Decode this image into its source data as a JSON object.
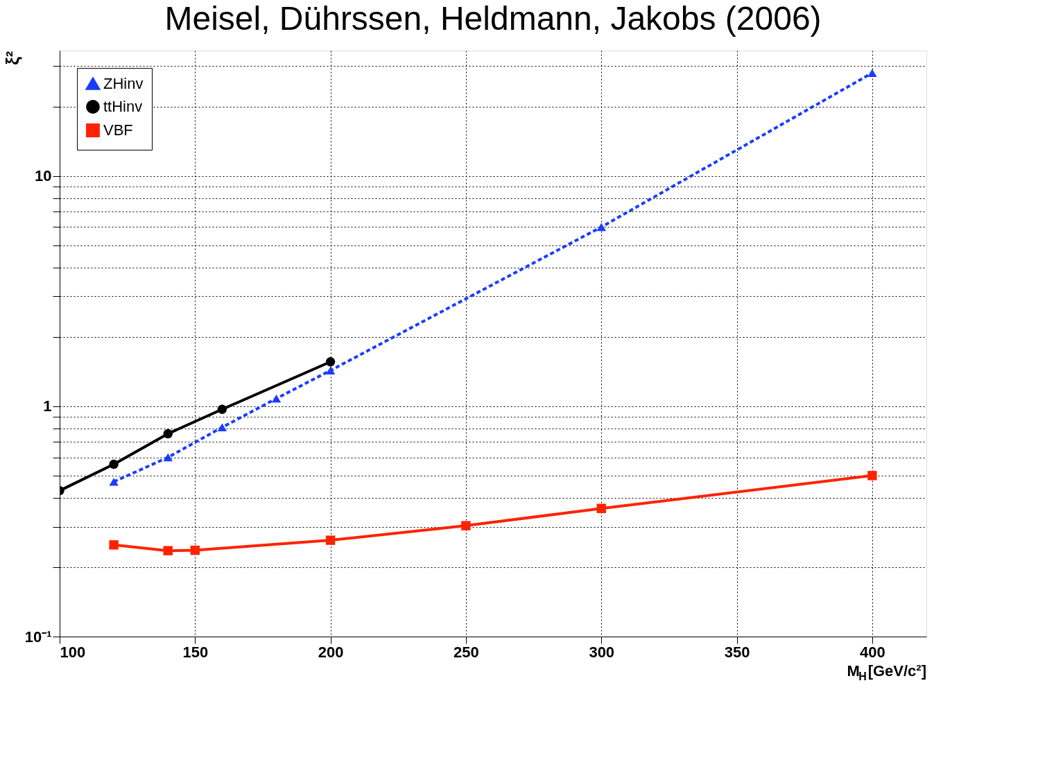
{
  "chart_data": {
    "type": "line",
    "title": "Meisel, Dührssen, Heldmann, Jakobs (2006)",
    "xlabel": "M$_{H}$[GeV/c²]",
    "ylabel": "ξ²",
    "series": [
      {
        "name": "ZHinv",
        "color": "#1a3cff",
        "line_style": "dashed",
        "marker": "triangle",
        "x": [
          120,
          140,
          160,
          180,
          200,
          300,
          400
        ],
        "values": [
          0.47,
          0.6,
          0.81,
          1.08,
          1.43,
          6.0,
          28
        ]
      },
      {
        "name": "ttHinv",
        "color": "#000000",
        "line_style": "solid",
        "marker": "circle",
        "x": [
          100,
          120,
          140,
          160,
          200
        ],
        "values": [
          0.43,
          0.56,
          0.76,
          0.97,
          1.56
        ]
      },
      {
        "name": "VBF",
        "color": "#ff2200",
        "line_style": "solid",
        "marker": "square",
        "x": [
          120,
          140,
          150,
          200,
          250,
          300,
          400
        ],
        "values": [
          0.25,
          0.236,
          0.237,
          0.262,
          0.303,
          0.36,
          0.5
        ]
      }
    ],
    "xlim": [
      100,
      420
    ],
    "xticks": [
      100,
      150,
      200,
      250,
      300,
      350,
      400
    ],
    "ylim": [
      0.1,
      35
    ],
    "log": "y",
    "yticks": [
      {
        "value": 0.1,
        "label": "10⁻¹"
      },
      {
        "value": 0.2,
        "label": null
      },
      {
        "value": 0.3,
        "label": null
      },
      {
        "value": 0.4,
        "label": null
      },
      {
        "value": 0.5,
        "label": null
      },
      {
        "value": 0.6,
        "label": null
      },
      {
        "value": 0.7,
        "label": null
      },
      {
        "value": 0.8,
        "label": null
      },
      {
        "value": 0.9,
        "label": null
      },
      1,
      {
        "value": 2,
        "label": null
      },
      {
        "value": 3,
        "label": null
      },
      {
        "value": 4,
        "label": null
      },
      {
        "value": 5,
        "label": null
      },
      {
        "value": 6,
        "label": null
      },
      {
        "value": 7,
        "label": null
      },
      {
        "value": 8,
        "label": null
      },
      {
        "value": 9,
        "label": null
      },
      10,
      {
        "value": 20,
        "label": null
      },
      {
        "value": 30,
        "label": null
      }
    ],
    "grid": true,
    "legend": "top left"
  }
}
